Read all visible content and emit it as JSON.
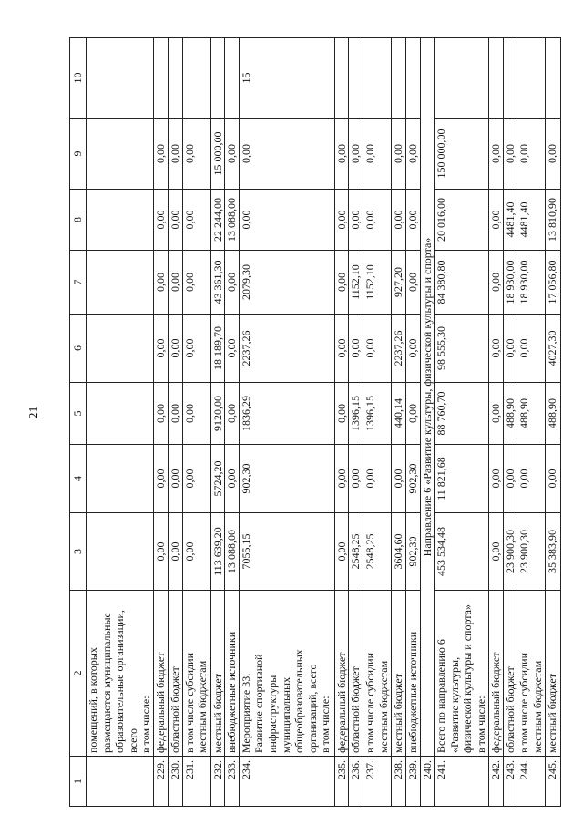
{
  "page_number": "21",
  "headers": [
    "1",
    "2",
    "3",
    "4",
    "5",
    "6",
    "7",
    "8",
    "9",
    "10"
  ],
  "rows": [
    {
      "n": "",
      "name": [
        "помещений, в которых",
        "размещаются муниципальные",
        "образовательные организации,",
        "всего",
        "в том числе:"
      ],
      "values": [
        "",
        "",
        "",
        "",
        "",
        "",
        "",
        ""
      ]
    },
    {
      "n": "229.",
      "name": [
        "федеральный бюджет"
      ],
      "values": [
        "0,00",
        "0,00",
        "0,00",
        "0,00",
        "0,00",
        "0,00",
        "0,00",
        ""
      ]
    },
    {
      "n": "230.",
      "name": [
        "областной бюджет"
      ],
      "values": [
        "0,00",
        "0,00",
        "0,00",
        "0,00",
        "0,00",
        "0,00",
        "0,00",
        ""
      ]
    },
    {
      "n": "231.",
      "name": [
        "в том числе субсидии",
        "местным бюджетам"
      ],
      "values": [
        "0,00",
        "0,00",
        "0,00",
        "0,00",
        "0,00",
        "0,00",
        "0,00",
        ""
      ]
    },
    {
      "n": "232.",
      "name": [
        "местный бюджет"
      ],
      "values": [
        "113 639,20",
        "5724,20",
        "9120,00",
        "18 189,70",
        "43 361,30",
        "22 244,00",
        "15 000,00",
        ""
      ]
    },
    {
      "n": "233.",
      "name": [
        "внебюджетные источники"
      ],
      "values": [
        "13 088,00",
        "0,00",
        "0,00",
        "0,00",
        "0,00",
        "13 088,00",
        "0,00",
        ""
      ]
    },
    {
      "n": "234.",
      "name": [
        "Мероприятие 33.",
        "Развитие спортивной",
        "инфраструктуры",
        "муниципальных",
        "общеобразовательных",
        "организаций, всего",
        "в том числе:"
      ],
      "values": [
        "7055,15",
        "902,30",
        "1836,29",
        "2237,26",
        "2079,30",
        "0,00",
        "0,00",
        "15"
      ]
    },
    {
      "n": "235.",
      "name": [
        "федеральный бюджет"
      ],
      "values": [
        "0,00",
        "0,00",
        "0,00",
        "0,00",
        "0,00",
        "0,00",
        "0,00",
        ""
      ]
    },
    {
      "n": "236.",
      "name": [
        "областной бюджет"
      ],
      "values": [
        "2548,25",
        "0,00",
        "1396,15",
        "0,00",
        "1152,10",
        "0,00",
        "0,00",
        ""
      ]
    },
    {
      "n": "237.",
      "name": [
        "в том числе субсидии",
        "местным бюджетам"
      ],
      "values": [
        "2548,25",
        "0,00",
        "1396,15",
        "0,00",
        "1152,10",
        "0,00",
        "0,00",
        ""
      ]
    },
    {
      "n": "238.",
      "name": [
        "местный бюджет"
      ],
      "values": [
        "3604,60",
        "0,00",
        "440,14",
        "2237,26",
        "927,20",
        "0,00",
        "0,00",
        ""
      ]
    },
    {
      "n": "239.",
      "name": [
        "внебюджетные источники"
      ],
      "values": [
        "902,30",
        "902,30",
        "0,00",
        "0,00",
        "0,00",
        "0,00",
        "0,00",
        ""
      ]
    },
    {
      "n": "240.",
      "section": "Направление 6 «Развитие культуры, физической культуры и спорта»"
    },
    {
      "n": "241.",
      "name": [
        "Всего по направлению 6",
        "«Развитие культуры,",
        "физической культуры и спорта»",
        "в том числе:"
      ],
      "values": [
        "453 534,48",
        "11 821,68",
        "88 760,70",
        "98 555,30",
        "84 380,80",
        "20 016,00",
        "150 000,00",
        ""
      ]
    },
    {
      "n": "242.",
      "name": [
        "федеральный бюджет"
      ],
      "values": [
        "0,00",
        "0,00",
        "0,00",
        "0,00",
        "0,00",
        "0,00",
        "0,00",
        ""
      ]
    },
    {
      "n": "243.",
      "name": [
        "областной бюджет"
      ],
      "values": [
        "23 900,30",
        "0,00",
        "488,90",
        "0,00",
        "18 930,00",
        "4481,40",
        "0,00",
        ""
      ]
    },
    {
      "n": "244.",
      "name": [
        "в том числе субсидии",
        "местным бюджетам"
      ],
      "values": [
        "23 900,30",
        "0,00",
        "488,90",
        "0,00",
        "18 930,00",
        "4481,40",
        "0,00",
        ""
      ]
    },
    {
      "n": "245.",
      "name": [
        "местный бюджет"
      ],
      "values": [
        "35 383,90",
        "0,00",
        "488,90",
        "4027,30",
        "17 056,80",
        "13 810,90",
        "0,00",
        ""
      ]
    }
  ]
}
